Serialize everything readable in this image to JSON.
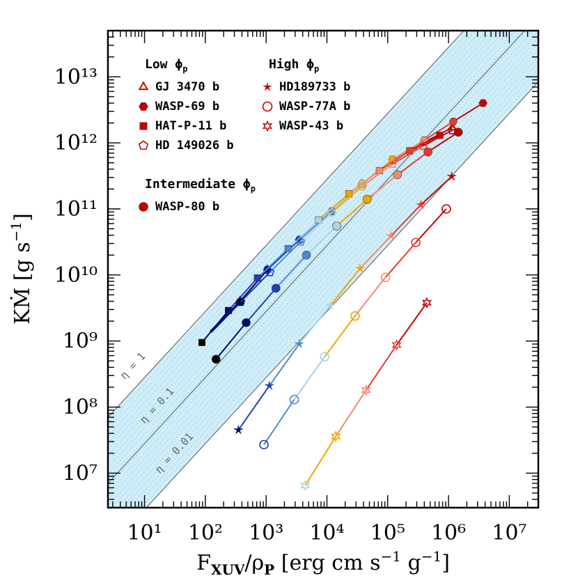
{
  "chart_data": {
    "type": "scatter",
    "xlabel": "F_XUV/ρ_P [erg cm s⁻¹ g⁻¹]",
    "ylabel": "KṀ [g s⁻¹]",
    "x_scale": "log",
    "y_scale": "log",
    "xlim": [
      2.5,
      30000000
    ],
    "ylim": [
      3000000,
      50000000000000
    ],
    "x_ticks": [
      {
        "value": 10,
        "label": "10¹"
      },
      {
        "value": 100,
        "label": "10²"
      },
      {
        "value": 1000,
        "label": "10³"
      },
      {
        "value": 10000,
        "label": "10⁴"
      },
      {
        "value": 100000,
        "label": "10⁵"
      },
      {
        "value": 1000000,
        "label": "10⁶"
      },
      {
        "value": 10000000,
        "label": "10⁷"
      }
    ],
    "y_ticks": [
      {
        "value": 10000000,
        "label": "10⁷"
      },
      {
        "value": 100000000,
        "label": "10⁸"
      },
      {
        "value": 1000000000,
        "label": "10⁹"
      },
      {
        "value": 10000000000,
        "label": "10¹⁰"
      },
      {
        "value": 100000000000,
        "label": "10¹¹"
      },
      {
        "value": 1000000000000,
        "label": "10¹²"
      },
      {
        "value": 10000000000000,
        "label": "10¹³"
      }
    ],
    "efficiency_lines": [
      {
        "eta": 1,
        "label": "η = 1"
      },
      {
        "eta": 0.1,
        "label": "η = 0.1"
      },
      {
        "eta": 0.01,
        "label": "η = 0.01"
      }
    ],
    "shaded_band": {
      "eta_min": 0.01,
      "eta_max": 1,
      "color": "#cfeefa"
    },
    "point_colors": [
      "#000d6b",
      "#1f3fb8",
      "#4f87d4",
      "#a7d4e8",
      "#f0a400",
      "#f28a6a",
      "#e63a2e",
      "#c40000"
    ],
    "legend": {
      "groups": [
        {
          "header": "Low ϕp",
          "entries": [
            "GJ 3470 b",
            "WASP-69 b",
            "HAT-P-11 b",
            "HD 149026 b"
          ]
        },
        {
          "header": "Intermediate ϕp",
          "entries": [
            "WASP-80 b"
          ]
        },
        {
          "header": "High ϕp",
          "entries": [
            "HD189733 b",
            "WASP-77A b",
            "WASP-43 b"
          ]
        }
      ]
    },
    "series": [
      {
        "name": "GJ 3470 b",
        "marker": "open-triangle",
        "x": [
          120,
          370,
          1050,
          3500,
          12000,
          37000,
          118000,
          380000,
          1150000
        ],
        "y": [
          1400000000,
          4000000000,
          12000000000,
          34000000000,
          92000000000,
          240000000000,
          520000000000,
          1000000000000,
          1700000000000
        ]
      },
      {
        "name": "WASP-69 b",
        "marker": "filled-hexagon",
        "x": [
          370,
          1050,
          3500,
          12000,
          38000,
          120000,
          400000,
          1200000,
          3700000
        ],
        "y": [
          3900000000,
          12000000000,
          34000000000,
          92000000000,
          240000000000,
          560000000000,
          1100000000000,
          2100000000000,
          4000000000000
        ]
      },
      {
        "name": "HAT-P-11 b",
        "marker": "filled-square",
        "x": [
          88,
          240,
          720,
          2300,
          7300,
          23000,
          73000,
          230000,
          720000
        ],
        "y": [
          950000000,
          2900000000,
          9000000000,
          25000000000,
          68000000000,
          170000000000,
          380000000000,
          760000000000,
          1300000000000
        ]
      },
      {
        "name": "HD 149026 b",
        "marker": "open-pentagon",
        "x": [
          125,
          380,
          1150,
          3700,
          12000,
          38000,
          120000,
          380000,
          1150000
        ],
        "y": [
          1350000000,
          3900000000,
          11000000000,
          32000000000,
          88000000000,
          220000000000,
          480000000000,
          900000000000,
          1550000000000
        ]
      },
      {
        "name": "WASP-80 b",
        "marker": "filled-circle",
        "x": [
          150,
          470,
          1450,
          4600,
          14500,
          46000,
          145000,
          460000,
          1450000
        ],
        "y": [
          530000000,
          1900000000,
          6300000000,
          20000000000,
          55000000000,
          140000000000,
          330000000000,
          730000000000,
          1450000000000
        ]
      },
      {
        "name": "HD189733 b",
        "marker": "star",
        "x": [
          350,
          1130,
          3500,
          11300,
          35000,
          113000,
          350000,
          1130000
        ],
        "y": [
          45000000,
          210000000,
          900000000,
          3400000000,
          12500000000,
          39000000000,
          115000000000,
          310000000000
        ]
      },
      {
        "name": "WASP-77A b",
        "marker": "open-circle",
        "x": [
          920,
          2900,
          9200,
          29000,
          92000,
          290000,
          920000
        ],
        "y": [
          27000000,
          130000000,
          580000000,
          2400000000,
          9200000000,
          31000000000,
          100000000000
        ]
      },
      {
        "name": "WASP-43 b",
        "marker": "open-star",
        "x": [
          4400,
          14000,
          44000,
          140000,
          440000
        ],
        "y": [
          6500000,
          36000000,
          180000000,
          870000000,
          3800000000
        ]
      }
    ]
  }
}
